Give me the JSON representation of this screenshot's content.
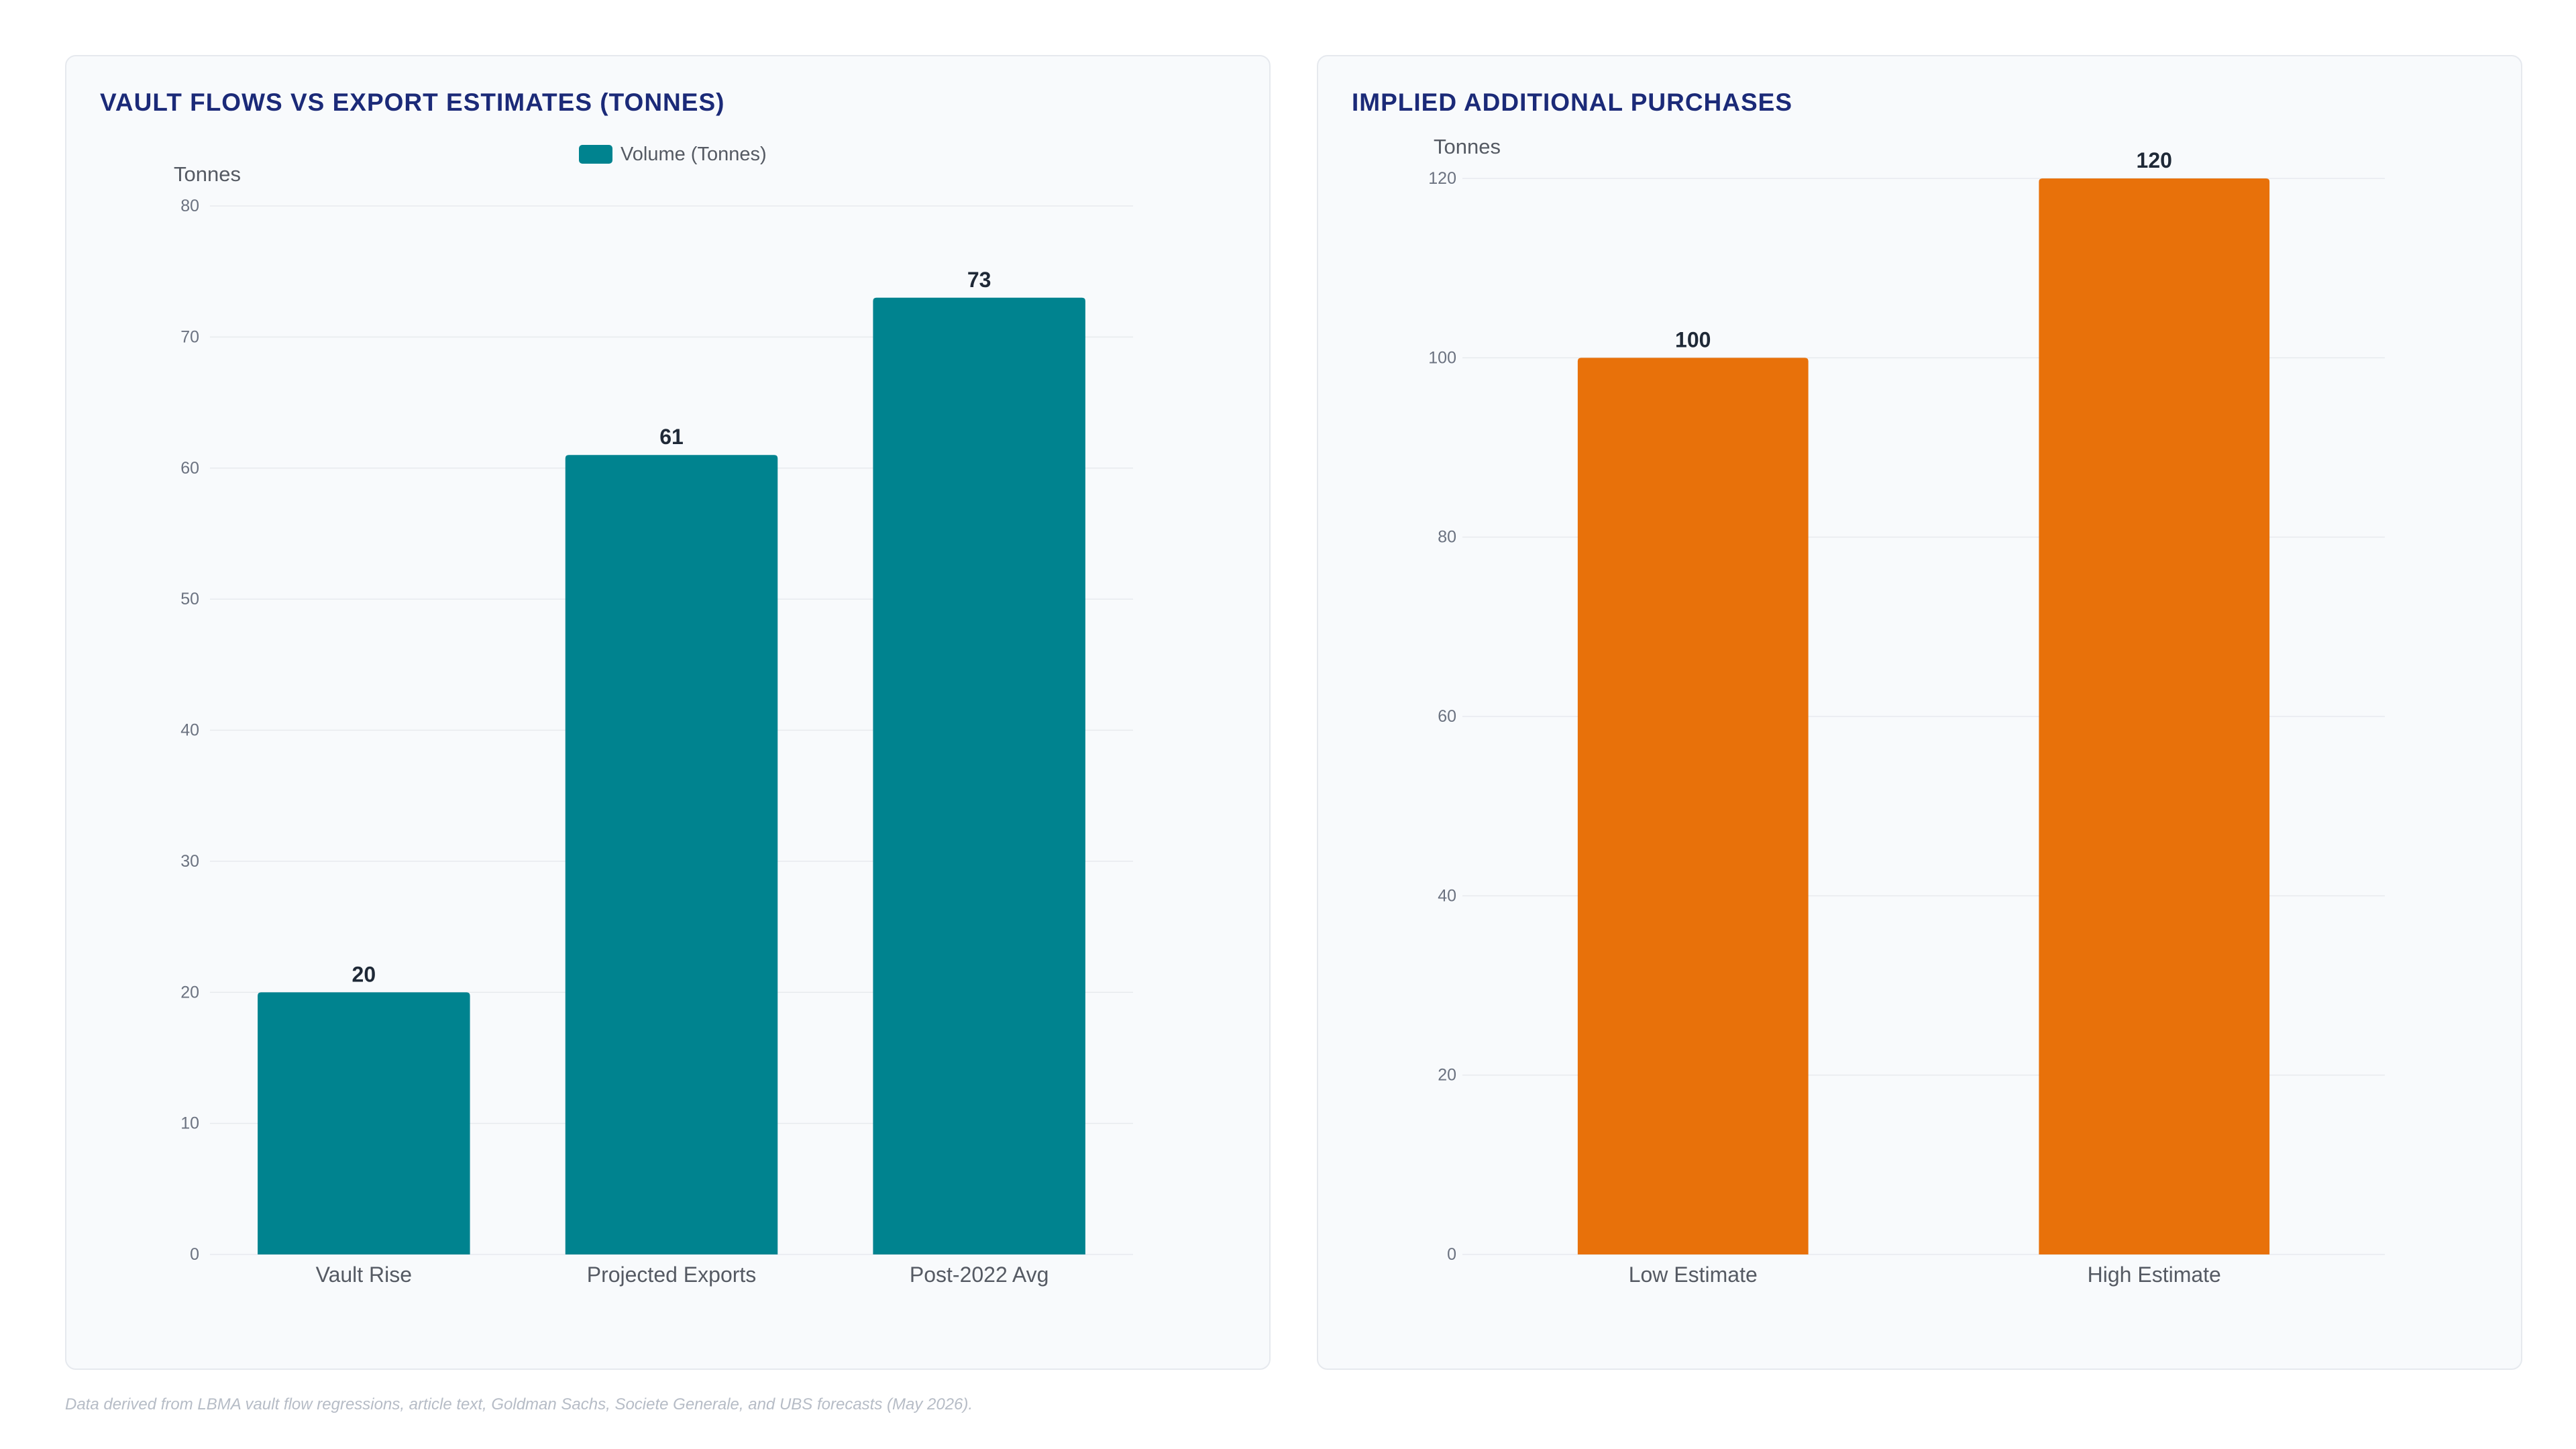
{
  "footnote": "Data derived from LBMA vault flow regressions, article text, Goldman Sachs, Societe Generale, and UBS forecasts (May 2026).",
  "colors": {
    "teal": "#00838f",
    "orange": "#e8710a",
    "title": "#1b2a78",
    "grid": "#e7eaee",
    "tick": "#6b7280",
    "label": "#555a63",
    "value": "#1f2937"
  },
  "chart_data": [
    {
      "type": "bar",
      "title": "VAULT FLOWS VS EXPORT ESTIMATES (TONNES)",
      "ylabel": "Tonnes",
      "xlabel": "",
      "categories": [
        "Vault Rise",
        "Projected Exports",
        "Post-2022 Avg"
      ],
      "series": [
        {
          "name": "Volume (Tonnes)",
          "values": [
            20,
            61,
            73
          ],
          "color": "#00838f"
        }
      ],
      "ylim": [
        0,
        80
      ],
      "yticks": [
        0,
        10,
        20,
        30,
        40,
        50,
        60,
        70,
        80
      ],
      "legend": "top-center",
      "grid": true,
      "data_labels": true
    },
    {
      "type": "bar",
      "title": "IMPLIED ADDITIONAL PURCHASES",
      "ylabel": "Tonnes",
      "xlabel": "",
      "categories": [
        "Low Estimate",
        "High Estimate"
      ],
      "series": [
        {
          "values": [
            100,
            120
          ],
          "color": "#e8710a"
        }
      ],
      "ylim": [
        0,
        120
      ],
      "yticks": [
        0,
        20,
        40,
        60,
        80,
        100,
        120
      ],
      "legend": "none",
      "grid": true,
      "data_labels": true
    }
  ]
}
